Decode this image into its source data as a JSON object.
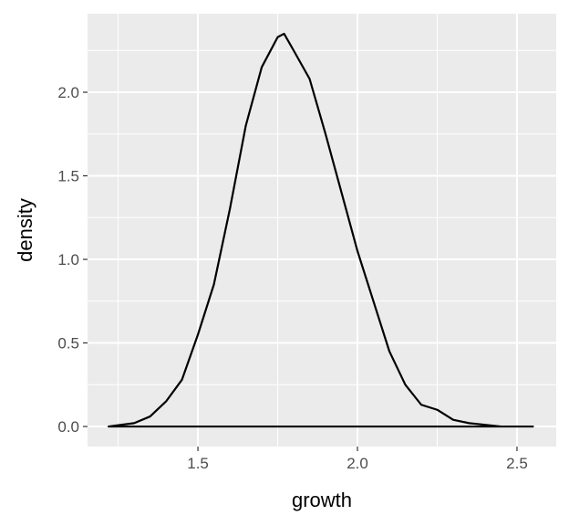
{
  "chart_data": {
    "type": "density",
    "x_label": "growth",
    "y_label": "density",
    "x": [
      1.22,
      1.3,
      1.35,
      1.4,
      1.45,
      1.5,
      1.55,
      1.6,
      1.65,
      1.7,
      1.75,
      1.77,
      1.8,
      1.85,
      1.9,
      1.95,
      2.0,
      2.05,
      2.1,
      2.15,
      2.2,
      2.25,
      2.3,
      2.35,
      2.4,
      2.45,
      2.55
    ],
    "values": [
      0,
      0.02,
      0.06,
      0.15,
      0.28,
      0.55,
      0.85,
      1.3,
      1.8,
      2.15,
      2.33,
      2.35,
      2.25,
      2.08,
      1.75,
      1.4,
      1.05,
      0.75,
      0.45,
      0.25,
      0.13,
      0.1,
      0.04,
      0.02,
      0.01,
      0,
      0
    ],
    "color": "#000000",
    "xlim": [
      1.154,
      2.623
    ],
    "ylim": [
      -0.12,
      2.47
    ],
    "xticks": [
      {
        "value": 1.5,
        "label": "1.5"
      },
      {
        "value": 2.0,
        "label": "2.0"
      },
      {
        "value": 2.5,
        "label": "2.5"
      }
    ],
    "yticks": [
      {
        "value": 0,
        "label": "0.0"
      },
      {
        "value": 0.5,
        "label": "0.5"
      },
      {
        "value": 1.0,
        "label": "1.0"
      },
      {
        "value": 1.5,
        "label": "1.5"
      },
      {
        "value": 2.0,
        "label": "2.0"
      }
    ],
    "xminor": [
      1.25,
      1.75,
      2.25
    ],
    "yminor": [
      0.25,
      0.75,
      1.25,
      1.75,
      2.25
    ],
    "grid": true
  }
}
